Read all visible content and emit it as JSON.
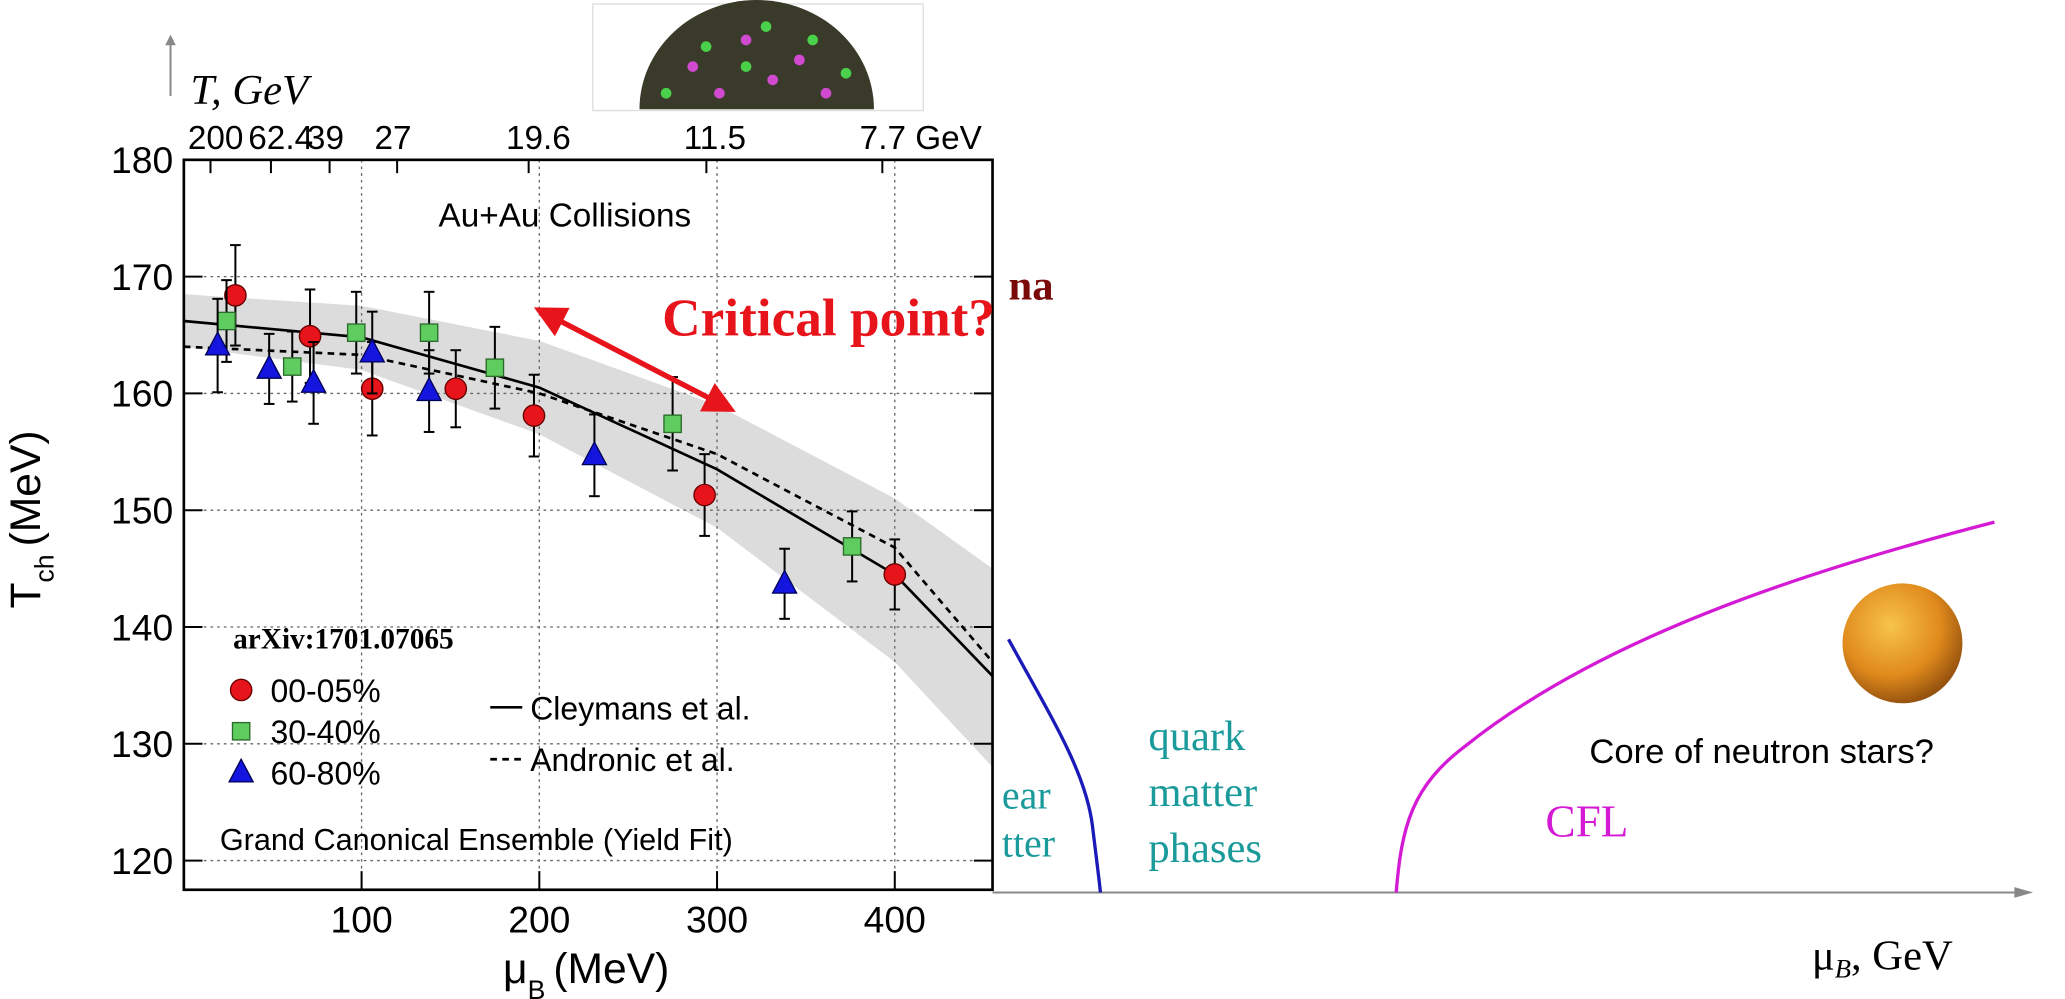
{
  "chart_data": {
    "type": "scatter",
    "title": "Au+Au Collisions",
    "x_label": {
      "symbol": "μ",
      "subscript": "B",
      "unit": "(MeV)"
    },
    "y_label": {
      "symbol": "T",
      "subscript": "ch",
      "unit": "(MeV)"
    },
    "xlim": [
      0,
      455
    ],
    "ylim": [
      117.5,
      180
    ],
    "xticks": [
      100,
      200,
      300,
      400
    ],
    "yticks": [
      120,
      130,
      140,
      150,
      160,
      170,
      180
    ],
    "grid": true,
    "top_axis": {
      "ticks": [
        {
          "value": 15,
          "label": "200"
        },
        {
          "value": 49,
          "label": "62.4"
        },
        {
          "value": 82,
          "label": "39"
        },
        {
          "value": 120,
          "label": "27"
        },
        {
          "value": 194,
          "label": "19.6"
        },
        {
          "value": 294,
          "label": "11.5"
        },
        {
          "value": 393,
          "label": "7.7 GeV"
        }
      ]
    },
    "series": [
      {
        "name": "00-05%",
        "color": "#e8141b",
        "marker": "circle",
        "x": [
          29,
          71,
          106,
          153,
          197,
          293,
          400
        ],
        "values": [
          168.4,
          164.9,
          160.4,
          160.4,
          158.1,
          151.3,
          144.5
        ],
        "errors": [
          4.3,
          4,
          4,
          3.3,
          3.5,
          3.5,
          3
        ]
      },
      {
        "name": "30-40%",
        "color": "#5fcc5f",
        "marker": "square",
        "x": [
          24,
          61,
          97,
          138,
          175,
          275,
          376
        ],
        "values": [
          166.2,
          162.3,
          165.2,
          165.2,
          162.2,
          157.4,
          146.9
        ],
        "errors": [
          3.5,
          3,
          3.5,
          3.5,
          3.5,
          4,
          3
        ]
      },
      {
        "name": "60-80%",
        "color": "#1515e0",
        "marker": "triangle",
        "x": [
          19,
          48,
          73,
          106,
          138,
          231,
          338
        ],
        "values": [
          164.1,
          162.1,
          160.9,
          163.5,
          160.2,
          154.7,
          143.7
        ],
        "errors": [
          4,
          3,
          3.5,
          3.5,
          3.5,
          3.5,
          3
        ]
      }
    ],
    "lines": [
      {
        "name": "Cleymans et al.",
        "color": "#000000",
        "dashed": false,
        "x": [
          0,
          100,
          200,
          300,
          400,
          455
        ],
        "values": [
          166.2,
          164.8,
          160.5,
          153.5,
          144.5,
          135.8
        ]
      },
      {
        "name": "Andronic et al.",
        "color": "#000000",
        "dashed": true,
        "x": [
          0,
          100,
          200,
          300,
          400,
          455
        ],
        "values": [
          164,
          163.3,
          160,
          154.8,
          146.8,
          137
        ]
      }
    ],
    "band": {
      "color": "#dcdcdc",
      "x": [
        0,
        100,
        200,
        300,
        400,
        455
      ],
      "upper": [
        168.5,
        167.5,
        164.5,
        159,
        151,
        145
      ],
      "lower": [
        164,
        162,
        156.5,
        148.5,
        137,
        128
      ]
    },
    "annotations": {
      "critical_point": "Critical point?",
      "reference": "arXiv:1701.07065",
      "ensemble": "Grand Canonical Ensemble (Yield Fit)"
    }
  },
  "phase_diagram": {
    "y_axis_label": "T, GeV",
    "x_axis_label": {
      "symbol": "μ",
      "subscript": "B",
      "unit": ", GeV"
    },
    "labels": {
      "hadron_fragment": "na",
      "nuclear_1": "ear",
      "nuclear_2": "tter",
      "quark": [
        "quark",
        "matter",
        "phases"
      ],
      "cfl": "CFL",
      "neutron_star": "Core of neutron stars?"
    }
  }
}
